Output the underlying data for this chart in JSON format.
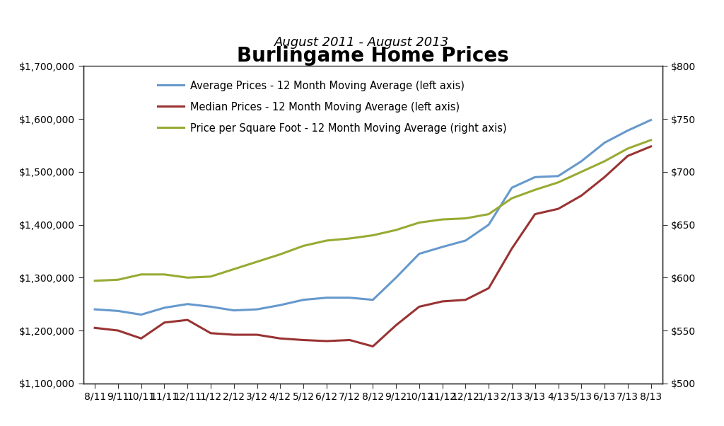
{
  "title": "Burlingame Home Prices",
  "subtitle": "August 2011 - August 2013",
  "x_labels": [
    "8/11",
    "9/11",
    "10/11",
    "11/11",
    "12/11",
    "1/12",
    "2/12",
    "3/12",
    "4/12",
    "5/12",
    "6/12",
    "7/12",
    "8/12",
    "9/12",
    "10/12",
    "11/12",
    "12/12",
    "1/13",
    "2/13",
    "3/13",
    "4/13",
    "5/13",
    "6/13",
    "7/13",
    "8/13"
  ],
  "avg_prices": [
    1240000,
    1237000,
    1230000,
    1243000,
    1250000,
    1245000,
    1238000,
    1240000,
    1248000,
    1258000,
    1262000,
    1262000,
    1258000,
    1300000,
    1345000,
    1358000,
    1370000,
    1400000,
    1470000,
    1490000,
    1492000,
    1520000,
    1555000,
    1578000,
    1598000
  ],
  "median_prices": [
    1205000,
    1200000,
    1185000,
    1215000,
    1220000,
    1195000,
    1192000,
    1192000,
    1185000,
    1182000,
    1180000,
    1182000,
    1170000,
    1210000,
    1245000,
    1255000,
    1258000,
    1280000,
    1355000,
    1420000,
    1430000,
    1455000,
    1490000,
    1530000,
    1548000
  ],
  "price_psf": [
    597,
    598,
    603,
    603,
    600,
    601,
    608,
    615,
    622,
    630,
    635,
    637,
    640,
    645,
    652,
    655,
    656,
    660,
    675,
    683,
    690,
    700,
    710,
    722,
    730
  ],
  "avg_color": "#6699CC",
  "median_color": "#993333",
  "psf_color": "#99AA33",
  "left_ylim": [
    1100000,
    1700000
  ],
  "right_ylim": [
    500,
    800
  ],
  "left_yticks": [
    1100000,
    1200000,
    1300000,
    1400000,
    1500000,
    1600000,
    1700000
  ],
  "right_yticks": [
    500,
    550,
    600,
    650,
    700,
    750,
    800
  ],
  "legend_avg": "Average Prices - 12 Month Moving Average (left axis)",
  "legend_median": "Median Prices - 12 Month Moving Average (left axis)",
  "legend_psf": "Price per Square Foot - 12 Month Moving Average (right axis)",
  "line_width": 2.2,
  "background_color": "#FFFFFF",
  "title_fontsize": 20,
  "subtitle_fontsize": 13,
  "tick_fontsize": 10,
  "legend_fontsize": 10.5
}
